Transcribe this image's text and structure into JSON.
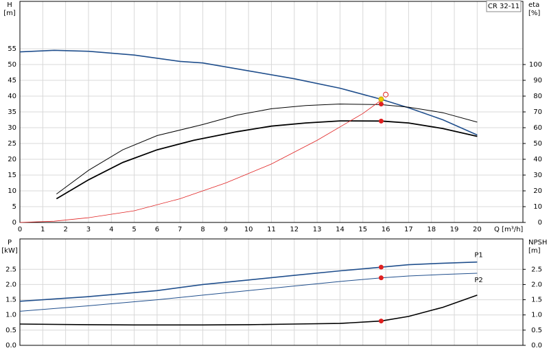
{
  "chart_data": [
    {
      "type": "line",
      "title": "CR 32-11",
      "ylabel": "H",
      "yunit": "[m]",
      "y2label": "eta",
      "y2unit": "[%]",
      "xlabel": "Q [m³/h]",
      "xlim": [
        0,
        22
      ],
      "xticks": [
        0,
        1,
        2,
        3,
        4,
        5,
        6,
        7,
        8,
        9,
        10,
        11,
        12,
        13,
        14,
        15,
        16,
        17,
        18,
        19,
        20
      ],
      "show_xtick_labels": true,
      "ylim": [
        0,
        70
      ],
      "yticks": [
        0,
        5,
        10,
        15,
        20,
        25,
        30,
        35,
        40,
        45,
        50,
        55
      ],
      "y2lim": [
        0,
        140
      ],
      "y2ticks": [
        0,
        10,
        20,
        30,
        40,
        50,
        60,
        70,
        80,
        90,
        100
      ],
      "grid": true,
      "series": [
        {
          "color": "#1f4e8c",
          "width": 1.6,
          "x": [
            0,
            1.5,
            3,
            5,
            7,
            8,
            10,
            12,
            14,
            15.8,
            17,
            18.5,
            20
          ],
          "values": [
            54,
            54.5,
            54.2,
            53,
            51,
            50.5,
            48,
            45.5,
            42.5,
            39,
            36.3,
            32.5,
            27.7
          ]
        },
        {
          "color": "#000000",
          "width": 1,
          "axis": "y2",
          "x": [
            1.6,
            3,
            4.5,
            6,
            8,
            9.5,
            11,
            12.5,
            14,
            15.8,
            17,
            18.5,
            20
          ],
          "values": [
            18,
            33,
            46,
            55,
            62,
            68,
            72,
            74,
            75,
            74.6,
            73,
            69.5,
            63.5
          ]
        },
        {
          "color": "#000000",
          "width": 1.8,
          "axis": "y2",
          "x": [
            1.6,
            3,
            4.5,
            6,
            7.6,
            9.5,
            11,
            12.5,
            14,
            15.8,
            17,
            18.5,
            20
          ],
          "values": [
            15,
            27,
            38,
            46,
            52,
            57.5,
            61,
            63,
            64.3,
            64.2,
            63,
            59.5,
            54.5
          ]
        },
        {
          "color": "#e02020",
          "width": 0.8,
          "x": [
            0,
            1.5,
            3,
            5,
            7,
            9,
            11,
            13,
            15,
            15.8
          ],
          "values": [
            0,
            0.4,
            1.5,
            3.7,
            7.5,
            12.5,
            18.5,
            26,
            34.5,
            38.7
          ]
        },
        {
          "color": "#e02020",
          "marker": "dot",
          "x": [
            15.8
          ],
          "values": [
            37.5
          ]
        },
        {
          "color": "#e02020",
          "marker": "dot",
          "axis": "y2",
          "x": [
            15.8
          ],
          "values": [
            64.2
          ]
        },
        {
          "color": "#f0d000",
          "marker": "dot",
          "x": [
            15.8
          ],
          "values": [
            39
          ]
        },
        {
          "color": "#e02020",
          "marker": "ring",
          "x": [
            16
          ],
          "values": [
            40.5
          ]
        }
      ]
    },
    {
      "type": "line",
      "ylabel": "P",
      "yunit": "[kW]",
      "y2label": "NPSH",
      "y2unit": "[m]",
      "xlim": [
        0,
        22
      ],
      "xticks": [
        0,
        1,
        2,
        3,
        4,
        5,
        6,
        7,
        8,
        9,
        10,
        11,
        12,
        13,
        14,
        15,
        16,
        17,
        18,
        19,
        20
      ],
      "show_xtick_labels": false,
      "ylim": [
        0,
        3.5
      ],
      "yticks": [
        {
          "value": 0,
          "label": "0.0"
        },
        {
          "value": 0.5,
          "label": "0.5"
        },
        {
          "value": 1,
          "label": "1.0"
        },
        {
          "value": 1.5,
          "label": "1.5"
        },
        {
          "value": 2,
          "label": "2.0"
        },
        {
          "value": 2.5,
          "label": "2.5"
        }
      ],
      "y2lim": [
        0,
        3.5
      ],
      "y2ticks": [
        {
          "value": 0,
          "label": "0.0"
        },
        {
          "value": 0.5,
          "label": "0.5"
        },
        {
          "value": 1,
          "label": "1.0"
        },
        {
          "value": 1.5,
          "label": "1.5"
        },
        {
          "value": 2,
          "label": "2.0"
        },
        {
          "value": 2.5,
          "label": "2.5"
        }
      ],
      "grid": true,
      "series": [
        {
          "name": "P1",
          "color": "#1f4e8c",
          "width": 1.6,
          "x": [
            0,
            3,
            6,
            8,
            10,
            12,
            14,
            15.8,
            17,
            18.5,
            20
          ],
          "values": [
            1.45,
            1.6,
            1.8,
            2.0,
            2.15,
            2.3,
            2.45,
            2.57,
            2.65,
            2.7,
            2.74
          ]
        },
        {
          "name": "P2",
          "color": "#1f4e8c",
          "width": 1,
          "x": [
            0,
            3,
            6,
            8,
            10,
            12,
            14,
            15.8,
            17,
            18.5,
            20
          ],
          "values": [
            1.12,
            1.3,
            1.5,
            1.65,
            1.8,
            1.95,
            2.1,
            2.22,
            2.28,
            2.33,
            2.37
          ]
        },
        {
          "color": "#000000",
          "width": 1.6,
          "axis": "y2",
          "x": [
            0,
            3,
            5,
            8,
            10,
            12,
            14,
            15.8,
            17,
            18.5,
            20
          ],
          "values": [
            0.7,
            0.68,
            0.67,
            0.67,
            0.68,
            0.7,
            0.72,
            0.8,
            0.95,
            1.25,
            1.65
          ]
        },
        {
          "color": "#e02020",
          "marker": "dot",
          "x": [
            15.8
          ],
          "values": [
            2.57
          ]
        },
        {
          "color": "#e02020",
          "marker": "dot",
          "x": [
            15.8
          ],
          "values": [
            2.22
          ]
        },
        {
          "color": "#e02020",
          "marker": "dot",
          "axis": "y2",
          "x": [
            15.8
          ],
          "values": [
            0.8
          ]
        }
      ]
    }
  ]
}
